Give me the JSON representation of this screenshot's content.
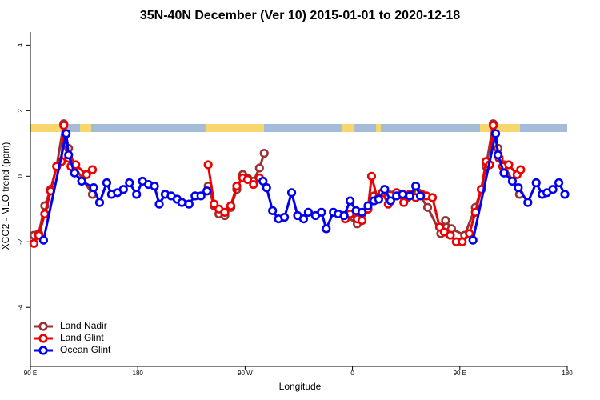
{
  "chart_data": {
    "type": "line",
    "title": "35N-40N December (Ver 10)   2015-01-01 to 2020-12-18",
    "xlabel": "Longitude",
    "ylabel": "XCO2 - MLO trend (ppm)",
    "xlim": [
      90,
      540
    ],
    "ylim": [
      -5.8,
      4.4
    ],
    "xticks": [
      {
        "value": 90,
        "label": "90 E"
      },
      180,
      {
        "value": 270,
        "label": "90 W"
      },
      {
        "value": 360,
        "label": "0"
      },
      {
        "value": 450,
        "label": "90 E"
      },
      {
        "value": 540,
        "label": "180"
      }
    ],
    "yticks": [
      -4,
      -2,
      0,
      2,
      4
    ],
    "legend": "bottom-left",
    "series": [
      {
        "name": "Land Nadir",
        "color": "#993333",
        "x": [
          93,
          97,
          102,
          107,
          112,
          118,
          122,
          127,
          142,
          190,
          239,
          244,
          248,
          253,
          258,
          263,
          268,
          272,
          277,
          282,
          286,
          320,
          354,
          364,
          373,
          378,
          387,
          397,
          406,
          415,
          423,
          434,
          438,
          443,
          454,
          463,
          468,
          472,
          478,
          482,
          487,
          500
        ],
        "values": [
          -1.8,
          -1.75,
          -0.9,
          -0.4,
          0.3,
          1.6,
          0.85,
          0.3,
          -0.55,
          null,
          -0.3,
          -0.9,
          -1.15,
          -1.2,
          -0.95,
          -0.4,
          0.05,
          -0.05,
          -0.15,
          0.25,
          0.7,
          null,
          -1.2,
          -1.45,
          -1.0,
          -0.6,
          -0.45,
          -0.5,
          -0.65,
          -0.5,
          -0.95,
          -1.75,
          -1.35,
          -1.6,
          -1.8,
          -0.95,
          -0.4,
          0.3,
          1.6,
          0.85,
          0.35,
          -0.55
        ]
      },
      {
        "name": "Land Glint",
        "color": "#ee0000",
        "x": [
          93,
          97,
          102,
          107,
          112,
          116,
          118,
          122,
          124,
          128,
          137,
          142,
          190,
          239,
          244,
          248,
          253,
          258,
          263,
          268,
          272,
          277,
          282,
          320,
          354,
          358,
          364,
          368,
          373,
          376,
          381,
          385,
          390,
          397,
          403,
          408,
          413,
          418,
          422,
          427,
          433,
          437,
          442,
          447,
          452,
          458,
          463,
          468,
          472,
          475,
          478,
          483,
          486,
          491,
          498,
          501
        ],
        "values": [
          -2.05,
          -1.8,
          -1.15,
          -0.45,
          0.3,
          0.45,
          1.55,
          0.55,
          0.3,
          0.35,
          0.05,
          0.2,
          null,
          0.35,
          -0.85,
          -1.0,
          -1.1,
          -0.9,
          -0.3,
          -0.05,
          -0.1,
          -0.25,
          -0.05,
          null,
          -1.3,
          -1.15,
          -1.3,
          -1.35,
          -1.0,
          0,
          -0.7,
          -0.5,
          -0.85,
          -0.5,
          -0.8,
          -0.55,
          -0.65,
          -0.55,
          -0.6,
          -0.65,
          -1.55,
          -1.7,
          -1.8,
          -2.0,
          -2.0,
          -1.75,
          -1.1,
          -0.4,
          0.45,
          0.35,
          1.55,
          0.55,
          0.3,
          0.35,
          0.05,
          0.2
        ]
      },
      {
        "name": "Ocean Glint",
        "color": "#0000ee",
        "x": [
          101,
          120,
          122,
          127,
          133,
          143,
          148,
          154,
          158,
          163,
          168,
          173,
          179,
          184,
          189,
          194,
          198,
          203,
          208,
          213,
          217,
          223,
          228,
          233,
          238,
          262,
          285,
          288,
          293,
          298,
          303,
          309,
          314,
          319,
          323,
          329,
          334,
          338,
          344,
          348,
          353,
          358,
          363,
          368,
          373,
          378,
          382,
          387,
          392,
          397,
          402,
          408,
          413,
          417,
          440,
          461,
          480,
          482,
          487,
          494,
          499,
          507,
          514,
          519,
          523,
          528,
          533,
          538
        ],
        "values": [
          -1.95,
          1.3,
          0.65,
          0.1,
          -0.15,
          -0.35,
          -0.8,
          -0.2,
          -0.55,
          -0.5,
          -0.4,
          -0.2,
          -0.55,
          -0.15,
          -0.25,
          -0.3,
          -0.85,
          -0.55,
          -0.6,
          -0.7,
          -0.8,
          -0.85,
          -0.6,
          -0.6,
          -0.45,
          null,
          -0.15,
          -0.35,
          -1.05,
          -1.3,
          -1.25,
          -0.5,
          -1.2,
          -1.3,
          -1.1,
          -1.2,
          -1.1,
          -1.6,
          -1.1,
          -1.15,
          -1.2,
          -0.75,
          -1.05,
          -1.1,
          -0.9,
          -0.75,
          -0.7,
          -0.4,
          -0.75,
          -0.6,
          -0.55,
          -0.6,
          -0.3,
          -0.6,
          null,
          -1.95,
          1.3,
          0.65,
          0.1,
          -0.15,
          -0.35,
          -0.8,
          -0.2,
          -0.55,
          -0.5,
          -0.4,
          -0.2,
          -0.55
        ]
      }
    ]
  }
}
